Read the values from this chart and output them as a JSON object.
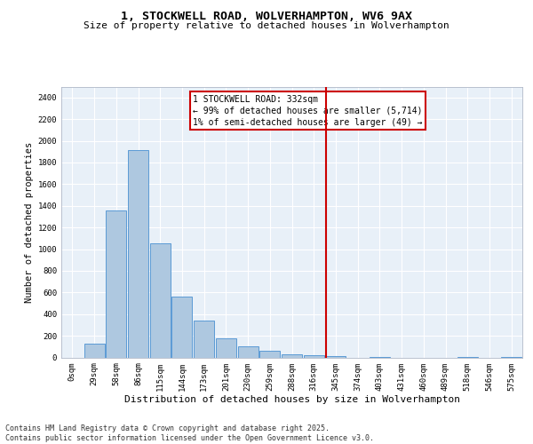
{
  "title": "1, STOCKWELL ROAD, WOLVERHAMPTON, WV6 9AX",
  "subtitle": "Size of property relative to detached houses in Wolverhampton",
  "xlabel": "Distribution of detached houses by size in Wolverhampton",
  "ylabel": "Number of detached properties",
  "bin_labels": [
    "0sqm",
    "29sqm",
    "58sqm",
    "86sqm",
    "115sqm",
    "144sqm",
    "173sqm",
    "201sqm",
    "230sqm",
    "259sqm",
    "288sqm",
    "316sqm",
    "345sqm",
    "374sqm",
    "403sqm",
    "431sqm",
    "460sqm",
    "489sqm",
    "518sqm",
    "546sqm",
    "575sqm"
  ],
  "bar_values": [
    0,
    130,
    1360,
    1910,
    1055,
    560,
    340,
    175,
    105,
    60,
    30,
    20,
    15,
    0,
    5,
    0,
    0,
    0,
    5,
    0,
    5
  ],
  "bar_color": "#aec8e0",
  "bar_edge_color": "#5b9bd5",
  "vline_color": "#cc0000",
  "annotation_text": "1 STOCKWELL ROAD: 332sqm\n← 99% of detached houses are smaller (5,714)\n1% of semi-detached houses are larger (49) →",
  "annotation_box_color": "#cc0000",
  "ylim": [
    0,
    2500
  ],
  "yticks": [
    0,
    200,
    400,
    600,
    800,
    1000,
    1200,
    1400,
    1600,
    1800,
    2000,
    2200,
    2400
  ],
  "footnote": "Contains HM Land Registry data © Crown copyright and database right 2025.\nContains public sector information licensed under the Open Government Licence v3.0.",
  "bg_color": "#e8f0f8",
  "fig_bg_color": "#ffffff",
  "grid_color": "#ffffff",
  "title_fontsize": 9.5,
  "subtitle_fontsize": 8,
  "ylabel_fontsize": 7.5,
  "xlabel_fontsize": 8,
  "tick_fontsize": 6.5,
  "annot_fontsize": 7,
  "footnote_fontsize": 6
}
